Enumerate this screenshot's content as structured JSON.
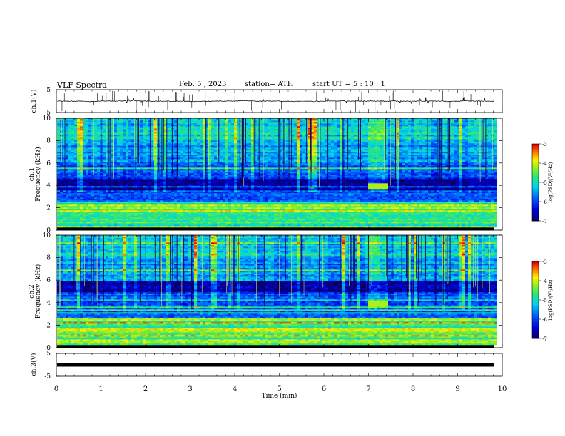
{
  "header": {
    "title": "VLF  Spectra",
    "date": "Feb. 5  , 2023",
    "station": "station= ATH",
    "start": "start  UT  =    5  : 10 : 1"
  },
  "chart_data": [
    {
      "type": "line",
      "name": "ch1-waveform",
      "ylabel": "ch.1(V)",
      "ylim": [
        -5,
        5
      ],
      "yticks": [
        "5",
        "-5"
      ],
      "xlim": [
        0,
        10
      ],
      "baseline": 0,
      "color": "#000000"
    },
    {
      "type": "heatmap",
      "name": "ch1-spectrogram",
      "ylabel": "ch.1\nFrequency  (kHz)",
      "ylabel_lines": [
        "ch.1",
        "Frequency  (kHz)"
      ],
      "ylim": [
        0,
        10
      ],
      "yticks": [
        "0",
        "2",
        "4",
        "6",
        "8",
        "10"
      ],
      "xlim": [
        0,
        9.8
      ],
      "colorbar": {
        "label": "log(PSD)(V²/Hz)",
        "ticks": [
          "-3",
          "-4",
          "-5",
          "-6",
          "-7"
        ],
        "range": [
          -7,
          -3
        ]
      },
      "features": {
        "dark_band_khz": [
          3.6,
          4.6
        ],
        "low_freq_lines_khz": [
          0.4,
          0.7,
          1.1,
          1.5,
          2.0,
          2.3
        ],
        "burst": {
          "time_min": 7.2,
          "freq_khz": 4.0
        }
      }
    },
    {
      "type": "heatmap",
      "name": "ch2-spectrogram",
      "ylabel": "ch.2\nFrequency  (kHz)",
      "ylabel_lines": [
        "ch.2",
        "Frequency  (kHz)"
      ],
      "ylim": [
        0,
        10
      ],
      "yticks": [
        "0",
        "2",
        "4",
        "6",
        "8",
        "10"
      ],
      "xlim": [
        0,
        9.8
      ],
      "colorbar": {
        "label": "log(PSD)(V²/Hz)",
        "ticks": [
          "-3",
          "-4",
          "-5",
          "-6",
          "-7"
        ],
        "range": [
          -7,
          -3
        ]
      },
      "features": {
        "dark_band_khz": [
          5.0,
          5.9
        ],
        "low_freq_lines_khz": [
          0.4,
          0.8,
          1.3,
          1.7,
          2.0,
          2.4
        ],
        "burst": {
          "time_min": 7.2,
          "freq_khz": 3.9
        }
      }
    },
    {
      "type": "line",
      "name": "ch3-waveform",
      "ylabel": "ch.3(V)",
      "ylim": [
        -5,
        5
      ],
      "yticks": [
        "5",
        "-5"
      ],
      "xlim": [
        0,
        10
      ],
      "baseline": 0,
      "color": "#000000"
    }
  ],
  "xaxis": {
    "label": "Time  (min)",
    "range": [
      0,
      10
    ],
    "ticks": [
      "0",
      "1",
      "2",
      "3",
      "4",
      "5",
      "6",
      "7",
      "8",
      "9",
      "10"
    ]
  }
}
